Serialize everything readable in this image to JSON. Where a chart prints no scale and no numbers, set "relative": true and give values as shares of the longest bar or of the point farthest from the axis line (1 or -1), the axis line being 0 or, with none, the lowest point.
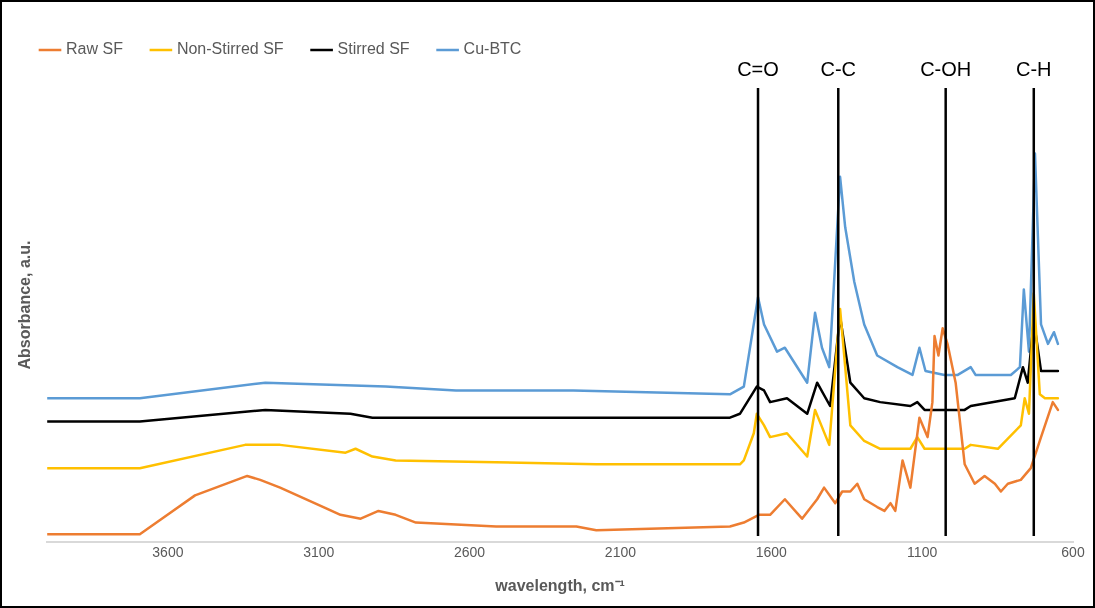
{
  "chart_data": {
    "type": "line",
    "xlabel": "wavelength, cm⁻¹",
    "ylabel": "Absorbance, a.u.",
    "relative": true,
    "legend": "top left",
    "grid": false,
    "marker": "none",
    "line_style": "solid",
    "xlim": [
      4000,
      600
    ],
    "xticks": [
      3600,
      3100,
      2600,
      2100,
      1600,
      1100,
      600
    ],
    "ref_lines": [
      {
        "axis": "x",
        "value": 1644,
        "label": "C=O",
        "color": "#000000"
      },
      {
        "axis": "x",
        "value": 1378,
        "label": "C-C",
        "color": "#000000"
      },
      {
        "axis": "x",
        "value": 1022,
        "label": "C-OH",
        "color": "#000000"
      },
      {
        "axis": "x",
        "value": 730,
        "label": "C-H",
        "color": "#000000"
      }
    ],
    "series": [
      {
        "name": "Raw SF",
        "color": "#ed7d31",
        "x": [
          4000,
          3693,
          3510,
          3337,
          3294,
          3228,
          3028,
          2961,
          2902,
          2845,
          2778,
          2512,
          2246,
          2180,
          1737,
          1691,
          1641,
          1604,
          1555,
          1498,
          1448,
          1425,
          1388,
          1365,
          1338,
          1315,
          1292,
          1249,
          1225,
          1205,
          1189,
          1165,
          1139,
          1109,
          1082,
          1066,
          1059,
          1046,
          1032,
          1016,
          989,
          959,
          926,
          893,
          859,
          839,
          816,
          773,
          740,
          706,
          667,
          650
        ],
        "values": [
          0.02,
          0.02,
          0.12,
          0.17,
          0.16,
          0.14,
          0.07,
          0.06,
          0.08,
          0.07,
          0.05,
          0.04,
          0.04,
          0.03,
          0.04,
          0.05,
          0.07,
          0.07,
          0.11,
          0.06,
          0.11,
          0.14,
          0.1,
          0.13,
          0.13,
          0.15,
          0.11,
          0.09,
          0.08,
          0.1,
          0.08,
          0.21,
          0.14,
          0.32,
          0.27,
          0.36,
          0.53,
          0.48,
          0.55,
          0.51,
          0.41,
          0.2,
          0.15,
          0.17,
          0.15,
          0.13,
          0.15,
          0.16,
          0.19,
          0.27,
          0.36,
          0.34
        ]
      },
      {
        "name": "Non-Stirred SF",
        "color": "#ffc000",
        "x": [
          4000,
          3693,
          3344,
          3228,
          3011,
          2978,
          2922,
          2845,
          2180,
          1737,
          1704,
          1691,
          1658,
          1648,
          1624,
          1604,
          1548,
          1481,
          1455,
          1408,
          1372,
          1338,
          1292,
          1239,
          1139,
          1116,
          1092,
          959,
          939,
          849,
          773,
          760,
          746,
          730,
          710,
          693,
          650
        ],
        "values": [
          0.19,
          0.19,
          0.25,
          0.25,
          0.23,
          0.24,
          0.22,
          0.21,
          0.2,
          0.2,
          0.2,
          0.21,
          0.28,
          0.33,
          0.3,
          0.27,
          0.28,
          0.22,
          0.34,
          0.25,
          0.6,
          0.3,
          0.26,
          0.24,
          0.24,
          0.27,
          0.24,
          0.24,
          0.25,
          0.24,
          0.3,
          0.37,
          0.33,
          0.64,
          0.38,
          0.37,
          0.37
        ]
      },
      {
        "name": "Stirred SF",
        "color": "#000000",
        "x": [
          4000,
          3693,
          3277,
          2995,
          2922,
          2845,
          2180,
          1737,
          1704,
          1648,
          1624,
          1604,
          1548,
          1481,
          1448,
          1405,
          1372,
          1338,
          1292,
          1239,
          1139,
          1116,
          1092,
          959,
          939,
          793,
          766,
          750,
          730,
          706,
          673,
          650
        ],
        "values": [
          0.31,
          0.31,
          0.34,
          0.33,
          0.32,
          0.32,
          0.32,
          0.32,
          0.33,
          0.4,
          0.39,
          0.36,
          0.37,
          0.33,
          0.41,
          0.35,
          0.58,
          0.41,
          0.37,
          0.36,
          0.35,
          0.36,
          0.34,
          0.34,
          0.35,
          0.37,
          0.45,
          0.41,
          0.57,
          0.44,
          0.44,
          0.44
        ]
      },
      {
        "name": "Cu-BTC",
        "color": "#5b9bd5",
        "x": [
          4000,
          3693,
          3277,
          2878,
          2645,
          2256,
          1737,
          1691,
          1644,
          1624,
          1581,
          1555,
          1481,
          1455,
          1432,
          1408,
          1372,
          1355,
          1325,
          1292,
          1249,
          1182,
          1132,
          1109,
          1089,
          1026,
          982,
          939,
          923,
          806,
          776,
          763,
          746,
          726,
          706,
          683,
          663,
          650
        ],
        "values": [
          0.37,
          0.37,
          0.41,
          0.4,
          0.39,
          0.39,
          0.38,
          0.4,
          0.63,
          0.56,
          0.49,
          0.5,
          0.41,
          0.59,
          0.5,
          0.45,
          0.94,
          0.81,
          0.67,
          0.56,
          0.48,
          0.45,
          0.43,
          0.5,
          0.44,
          0.43,
          0.43,
          0.45,
          0.43,
          0.43,
          0.45,
          0.65,
          0.49,
          1.0,
          0.56,
          0.51,
          0.54,
          0.51
        ]
      }
    ]
  }
}
